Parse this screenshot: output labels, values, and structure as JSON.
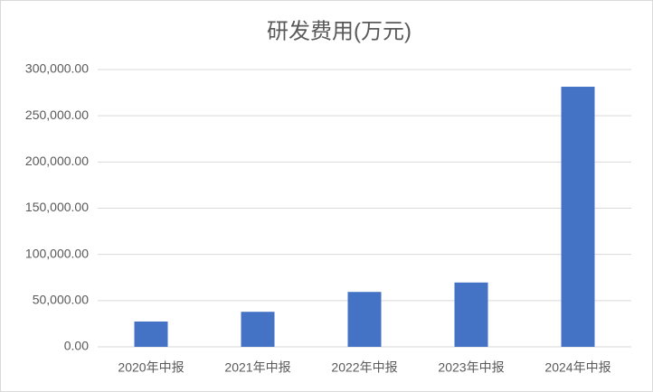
{
  "chart_data": {
    "type": "bar",
    "title": "研发费用(万元)",
    "categories": [
      "2020年中报",
      "2021年中报",
      "2022年中报",
      "2023年中报",
      "2024年中报"
    ],
    "values": [
      27400,
      37900,
      59400,
      69600,
      281400
    ],
    "color": "#4472c4",
    "ylim": [
      0,
      300000
    ],
    "yticks": [
      {
        "value": 0,
        "label": "0.00"
      },
      {
        "value": 50000,
        "label": "50,000.00"
      },
      {
        "value": 100000,
        "label": "100,000.00"
      },
      {
        "value": 150000,
        "label": "150,000.00"
      },
      {
        "value": 200000,
        "label": "200,000.00"
      },
      {
        "value": 250000,
        "label": "250,000.00"
      },
      {
        "value": 300000,
        "label": "300,000.00"
      }
    ],
    "grid": true
  }
}
